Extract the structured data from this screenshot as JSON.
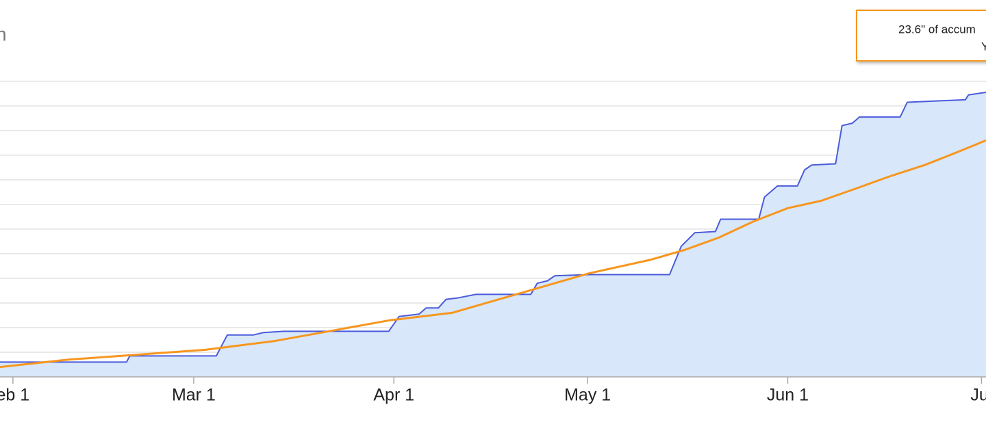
{
  "chart_data": {
    "type": "line",
    "title": "n",
    "annotations": [
      "23.6\" of accum",
      "Y"
    ],
    "xlim": [
      -2,
      150.7
    ],
    "xticks": [
      {
        "value": 0,
        "label": "eb 1"
      },
      {
        "value": 28,
        "label": "Mar 1"
      },
      {
        "value": 59,
        "label": "Apr 1"
      },
      {
        "value": 89,
        "label": "May 1"
      },
      {
        "value": 120,
        "label": "Jun 1"
      },
      {
        "value": 150,
        "label": "Jul"
      }
    ],
    "ylim": [
      0,
      30.6
    ],
    "yticks": [
      0,
      2,
      4,
      6,
      8,
      10,
      12,
      14,
      16,
      18,
      20,
      22,
      24
    ],
    "grid": true,
    "series": [
      {
        "color": "#4a5bdb",
        "fill": "#d8e7fa",
        "step": true,
        "x": [
          -2.0,
          17.6,
          18.1,
          31.5,
          33.2,
          37.2,
          38.8,
          42.0,
          58.2,
          59.8,
          62.9,
          64.0,
          65.9,
          67.1,
          68.8,
          71.7,
          80.2,
          81.2,
          82.8,
          83.9,
          89.2,
          101.7,
          103.5,
          105.6,
          108.8,
          109.6,
          115.5,
          116.4,
          118.4,
          121.5,
          122.6,
          123.7,
          127.4,
          128.4,
          130.0,
          131.1,
          137.4,
          138.5,
          142.7,
          147.5,
          148.0,
          150.7
        ],
        "values": [
          1.2,
          1.2,
          1.7,
          1.7,
          3.4,
          3.4,
          3.6,
          3.7,
          3.7,
          4.9,
          5.1,
          5.6,
          5.6,
          6.3,
          6.4,
          6.7,
          6.7,
          7.6,
          7.8,
          8.2,
          8.3,
          8.3,
          10.6,
          11.7,
          11.8,
          12.8,
          12.8,
          14.6,
          15.5,
          15.5,
          16.8,
          17.2,
          17.3,
          20.4,
          20.6,
          21.1,
          21.1,
          22.3,
          22.4,
          22.5,
          22.9,
          23.1
        ]
      },
      {
        "color": "#f7961e",
        "x": [
          -2.0,
          8.6,
          19.2,
          29.8,
          40.4,
          51.0,
          58.4,
          68.0,
          78.6,
          89.2,
          98.7,
          104.0,
          109.3,
          114.6,
          120.0,
          125.2,
          130.6,
          135.9,
          141.2,
          146.5,
          150.7
        ],
        "values": [
          0.8,
          1.4,
          1.8,
          2.2,
          2.9,
          3.9,
          4.6,
          5.2,
          6.8,
          8.4,
          9.5,
          10.3,
          11.3,
          12.6,
          13.7,
          14.3,
          15.3,
          16.3,
          17.2,
          18.3,
          19.2
        ]
      }
    ]
  }
}
